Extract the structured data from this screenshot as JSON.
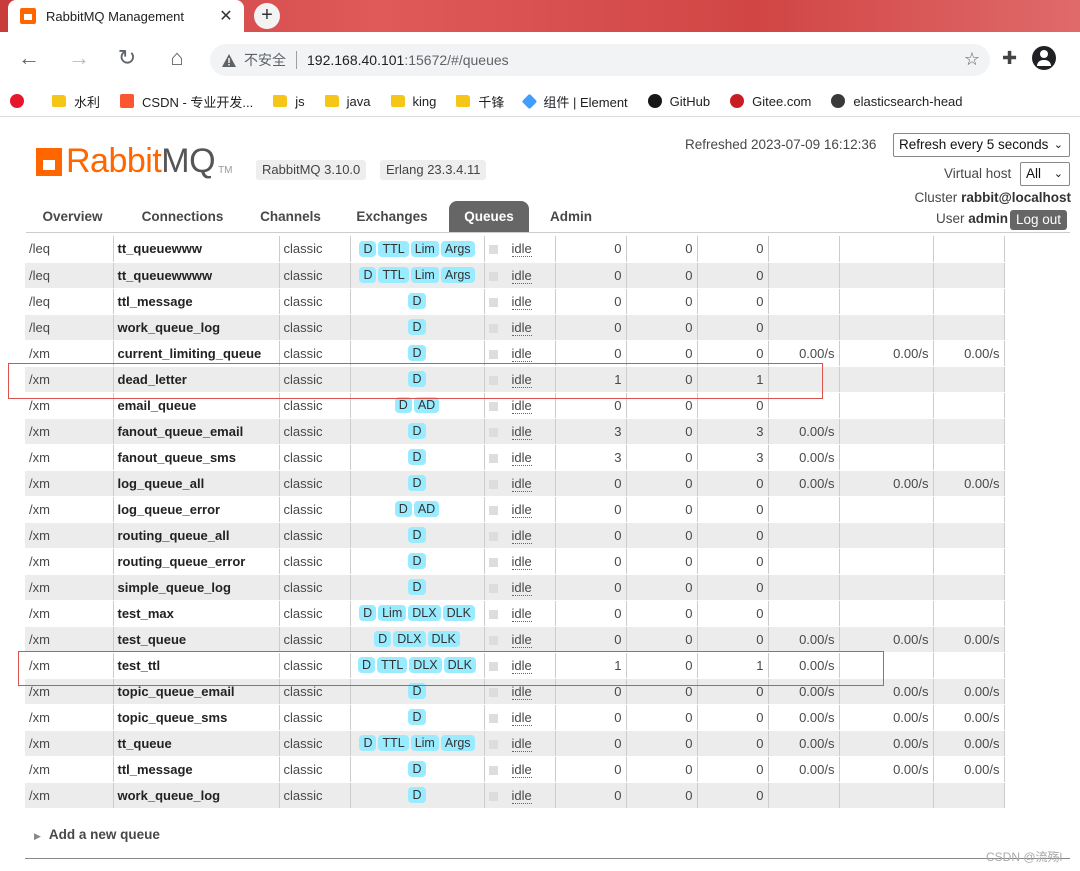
{
  "browser": {
    "tab_title": "RabbitMQ Management",
    "insecure_label": "不安全",
    "url_host": "192.168.40.101",
    "url_rest": ":15672/#/queues",
    "bookmarks": [
      {
        "label": "水利",
        "icon": "folder-icon"
      },
      {
        "label": "CSDN - 专业开发...",
        "icon": "csdn-icon"
      },
      {
        "label": "js",
        "icon": "folder-icon"
      },
      {
        "label": "java",
        "icon": "folder-icon"
      },
      {
        "label": "king",
        "icon": "folder-icon"
      },
      {
        "label": "千锋",
        "icon": "folder-icon"
      },
      {
        "label": "组件 | Element",
        "icon": "element-icon"
      },
      {
        "label": "GitHub",
        "icon": "github-icon"
      },
      {
        "label": "Gitee.com",
        "icon": "gitee-icon"
      },
      {
        "label": "elasticsearch-head",
        "icon": "es-icon"
      }
    ]
  },
  "header": {
    "logo_rabbit": "Rabbit",
    "logo_mq": "MQ",
    "logo_tm": "TM",
    "rabbitmq_version": "RabbitMQ 3.10.0",
    "erlang_version": "Erlang 23.3.4.11",
    "refreshed": "Refreshed 2023-07-09 16:12:36",
    "refresh_select": "Refresh every 5 seconds",
    "vhost_label": "Virtual host",
    "vhost_select": "All",
    "cluster_label": "Cluster",
    "cluster_name": "rabbit@localhost",
    "user_label": "User",
    "user_name": "admin",
    "logout": "Log out"
  },
  "nav": {
    "tabs": [
      "Overview",
      "Connections",
      "Channels",
      "Exchanges",
      "Queues",
      "Admin"
    ],
    "active": "Queues"
  },
  "queues": [
    {
      "vhost": "/leq",
      "name": "tt_queuewww",
      "type": "classic",
      "features": [
        "D",
        "TTL",
        "Lim",
        "Args"
      ],
      "state": "idle",
      "ready": "0",
      "unacked": "0",
      "total": "0",
      "incoming": "",
      "deliver": "",
      "ack": ""
    },
    {
      "vhost": "/leq",
      "name": "tt_queuewwww",
      "type": "classic",
      "features": [
        "D",
        "TTL",
        "Lim",
        "Args"
      ],
      "state": "idle",
      "ready": "0",
      "unacked": "0",
      "total": "0",
      "incoming": "",
      "deliver": "",
      "ack": ""
    },
    {
      "vhost": "/leq",
      "name": "ttl_message",
      "type": "classic",
      "features": [
        "D"
      ],
      "state": "idle",
      "ready": "0",
      "unacked": "0",
      "total": "0",
      "incoming": "",
      "deliver": "",
      "ack": ""
    },
    {
      "vhost": "/leq",
      "name": "work_queue_log",
      "type": "classic",
      "features": [
        "D"
      ],
      "state": "idle",
      "ready": "0",
      "unacked": "0",
      "total": "0",
      "incoming": "",
      "deliver": "",
      "ack": ""
    },
    {
      "vhost": "/xm",
      "name": "current_limiting_queue",
      "type": "classic",
      "features": [
        "D"
      ],
      "state": "idle",
      "ready": "0",
      "unacked": "0",
      "total": "0",
      "incoming": "0.00/s",
      "deliver": "0.00/s",
      "ack": "0.00/s"
    },
    {
      "vhost": "/xm",
      "name": "dead_letter",
      "type": "classic",
      "features": [
        "D"
      ],
      "state": "idle",
      "ready": "1",
      "unacked": "0",
      "total": "1",
      "incoming": "",
      "deliver": "",
      "ack": ""
    },
    {
      "vhost": "/xm",
      "name": "email_queue",
      "type": "classic",
      "features": [
        "D",
        "AD"
      ],
      "state": "idle",
      "ready": "0",
      "unacked": "0",
      "total": "0",
      "incoming": "",
      "deliver": "",
      "ack": ""
    },
    {
      "vhost": "/xm",
      "name": "fanout_queue_email",
      "type": "classic",
      "features": [
        "D"
      ],
      "state": "idle",
      "ready": "3",
      "unacked": "0",
      "total": "3",
      "incoming": "0.00/s",
      "deliver": "",
      "ack": ""
    },
    {
      "vhost": "/xm",
      "name": "fanout_queue_sms",
      "type": "classic",
      "features": [
        "D"
      ],
      "state": "idle",
      "ready": "3",
      "unacked": "0",
      "total": "3",
      "incoming": "0.00/s",
      "deliver": "",
      "ack": ""
    },
    {
      "vhost": "/xm",
      "name": "log_queue_all",
      "type": "classic",
      "features": [
        "D"
      ],
      "state": "idle",
      "ready": "0",
      "unacked": "0",
      "total": "0",
      "incoming": "0.00/s",
      "deliver": "0.00/s",
      "ack": "0.00/s"
    },
    {
      "vhost": "/xm",
      "name": "log_queue_error",
      "type": "classic",
      "features": [
        "D",
        "AD"
      ],
      "state": "idle",
      "ready": "0",
      "unacked": "0",
      "total": "0",
      "incoming": "",
      "deliver": "",
      "ack": ""
    },
    {
      "vhost": "/xm",
      "name": "routing_queue_all",
      "type": "classic",
      "features": [
        "D"
      ],
      "state": "idle",
      "ready": "0",
      "unacked": "0",
      "total": "0",
      "incoming": "",
      "deliver": "",
      "ack": ""
    },
    {
      "vhost": "/xm",
      "name": "routing_queue_error",
      "type": "classic",
      "features": [
        "D"
      ],
      "state": "idle",
      "ready": "0",
      "unacked": "0",
      "total": "0",
      "incoming": "",
      "deliver": "",
      "ack": ""
    },
    {
      "vhost": "/xm",
      "name": "simple_queue_log",
      "type": "classic",
      "features": [
        "D"
      ],
      "state": "idle",
      "ready": "0",
      "unacked": "0",
      "total": "0",
      "incoming": "",
      "deliver": "",
      "ack": ""
    },
    {
      "vhost": "/xm",
      "name": "test_max",
      "type": "classic",
      "features": [
        "D",
        "Lim",
        "DLX",
        "DLK"
      ],
      "state": "idle",
      "ready": "0",
      "unacked": "0",
      "total": "0",
      "incoming": "",
      "deliver": "",
      "ack": ""
    },
    {
      "vhost": "/xm",
      "name": "test_queue",
      "type": "classic",
      "features": [
        "D",
        "DLX",
        "DLK"
      ],
      "state": "idle",
      "ready": "0",
      "unacked": "0",
      "total": "0",
      "incoming": "0.00/s",
      "deliver": "0.00/s",
      "ack": "0.00/s"
    },
    {
      "vhost": "/xm",
      "name": "test_ttl",
      "type": "classic",
      "features": [
        "D",
        "TTL",
        "DLX",
        "DLK"
      ],
      "state": "idle",
      "ready": "1",
      "unacked": "0",
      "total": "1",
      "incoming": "0.00/s",
      "deliver": "",
      "ack": ""
    },
    {
      "vhost": "/xm",
      "name": "topic_queue_email",
      "type": "classic",
      "features": [
        "D"
      ],
      "state": "idle",
      "ready": "0",
      "unacked": "0",
      "total": "0",
      "incoming": "0.00/s",
      "deliver": "0.00/s",
      "ack": "0.00/s"
    },
    {
      "vhost": "/xm",
      "name": "topic_queue_sms",
      "type": "classic",
      "features": [
        "D"
      ],
      "state": "idle",
      "ready": "0",
      "unacked": "0",
      "total": "0",
      "incoming": "0.00/s",
      "deliver": "0.00/s",
      "ack": "0.00/s"
    },
    {
      "vhost": "/xm",
      "name": "tt_queue",
      "type": "classic",
      "features": [
        "D",
        "TTL",
        "Lim",
        "Args"
      ],
      "state": "idle",
      "ready": "0",
      "unacked": "0",
      "total": "0",
      "incoming": "0.00/s",
      "deliver": "0.00/s",
      "ack": "0.00/s"
    },
    {
      "vhost": "/xm",
      "name": "ttl_message",
      "type": "classic",
      "features": [
        "D"
      ],
      "state": "idle",
      "ready": "0",
      "unacked": "0",
      "total": "0",
      "incoming": "0.00/s",
      "deliver": "0.00/s",
      "ack": "0.00/s"
    },
    {
      "vhost": "/xm",
      "name": "work_queue_log",
      "type": "classic",
      "features": [
        "D"
      ],
      "state": "idle",
      "ready": "0",
      "unacked": "0",
      "total": "0",
      "incoming": "",
      "deliver": "",
      "ack": ""
    }
  ],
  "add_queue": "Add a new queue",
  "watermark": "CSDN @流殇l",
  "colors": {
    "brand": "#ff6600",
    "tag": "#99ebff",
    "highlight_box": "#d9534f",
    "active_tab": "#666666"
  }
}
